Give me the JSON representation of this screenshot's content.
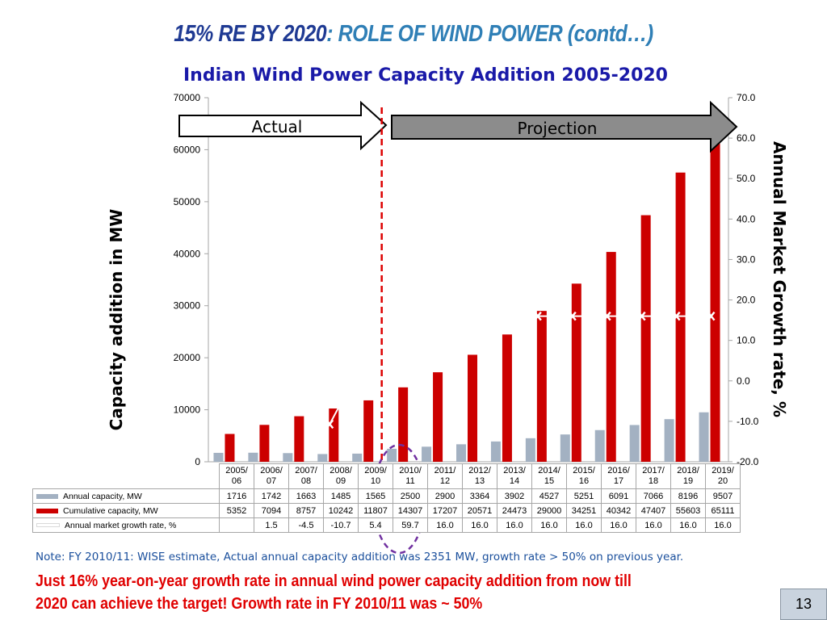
{
  "slide": {
    "title_part1": "15% RE BY 2020",
    "title_part2": ": ROLE OF WIND POWER (contd…)",
    "chart_title": "Indian Wind Power Capacity Addition 2005-2020",
    "left_axis_label": "Capacity addition in MW",
    "right_axis_label": "Annual Market Growth rate, %",
    "arrow_actual": "Actual",
    "arrow_projection": "Projection",
    "note": "Note: FY 2010/11: WISE estimate, Actual annual capacity addition was 2351 MW,  growth rate > 50%  on previous year.",
    "conclusion_line1": "Just 16% year-on-year growth rate in annual wind power capacity addition from now till",
    "conclusion_line2": "2020 can achieve the target!  Growth rate in FY 2010/11 was ~ 50%",
    "page_number": "13"
  },
  "chart_data": {
    "type": "bar",
    "categories": [
      "2005/06",
      "2006/07",
      "2007/08",
      "2008/09",
      "2009/10",
      "2010/11",
      "2011/12",
      "2012/13",
      "2013/14",
      "2014/15",
      "2015/16",
      "2016/17",
      "2017/18",
      "2018/19",
      "2019/20"
    ],
    "category_lines": [
      [
        "2005/",
        "06"
      ],
      [
        "2006/",
        "07"
      ],
      [
        "2007/",
        "08"
      ],
      [
        "2008/",
        "09"
      ],
      [
        "2009/",
        "10"
      ],
      [
        "2010/",
        "11"
      ],
      [
        "2011/",
        "12"
      ],
      [
        "2012/",
        "13"
      ],
      [
        "2013/",
        "14"
      ],
      [
        "2014/",
        "15"
      ],
      [
        "2015/",
        "16"
      ],
      [
        "2016/",
        "17"
      ],
      [
        "2017/",
        "18"
      ],
      [
        "2018/",
        "19"
      ],
      [
        "2019/",
        "20"
      ]
    ],
    "series": [
      {
        "name": "Annual capacity, MW",
        "type": "bar",
        "axis": "left",
        "color": "#a3b1c2",
        "values": [
          1716,
          1742,
          1663,
          1485,
          1565,
          2500,
          2900,
          3364,
          3902,
          4527,
          5251,
          6091,
          7066,
          8196,
          9507
        ]
      },
      {
        "name": "Cumulative capacity, MW",
        "type": "bar",
        "axis": "left",
        "color": "#cc0000",
        "values": [
          5352,
          7094,
          8757,
          10242,
          11807,
          14307,
          17207,
          20571,
          24473,
          29000,
          34251,
          40342,
          47407,
          55603,
          65111
        ]
      },
      {
        "name": "Annual market  growth rate, %",
        "type": "line",
        "axis": "right",
        "color": "#ffffff",
        "values": [
          null,
          1.5,
          -4.5,
          -10.7,
          5.4,
          59.7,
          16.0,
          16.0,
          16.0,
          16.0,
          16.0,
          16.0,
          16.0,
          16.0,
          16.0
        ]
      }
    ],
    "table_values": [
      [
        "1716",
        "1742",
        "1663",
        "1485",
        "1565",
        "2500",
        "2900",
        "3364",
        "3902",
        "4527",
        "5251",
        "6091",
        "7066",
        "8196",
        "9507"
      ],
      [
        "5352",
        "7094",
        "8757",
        "10242",
        "11807",
        "14307",
        "17207",
        "20571",
        "24473",
        "29000",
        "34251",
        "40342",
        "47407",
        "55603",
        "65111"
      ],
      [
        "",
        "1.5",
        "-4.5",
        "-10.7",
        "5.4",
        "59.7",
        "16.0",
        "16.0",
        "16.0",
        "16.0",
        "16.0",
        "16.0",
        "16.0",
        "16.0",
        "16.0"
      ]
    ],
    "left_axis": {
      "min": 0,
      "max": 70000,
      "ticks": [
        "0",
        "10000",
        "20000",
        "30000",
        "40000",
        "50000",
        "60000",
        "70000"
      ]
    },
    "right_axis": {
      "min": -20,
      "max": 70,
      "ticks": [
        "-20.0",
        "-10.0",
        "0.0",
        "10.0",
        "20.0",
        "30.0",
        "40.0",
        "50.0",
        "60.0",
        "70.0"
      ]
    },
    "divider_between": [
      "2009/10",
      "2010/11"
    ],
    "divider_color": "#dd0000",
    "highlight_category": "2010/11",
    "highlight_color": "#7030a0",
    "legend_placement": "table-left",
    "grid": false
  }
}
